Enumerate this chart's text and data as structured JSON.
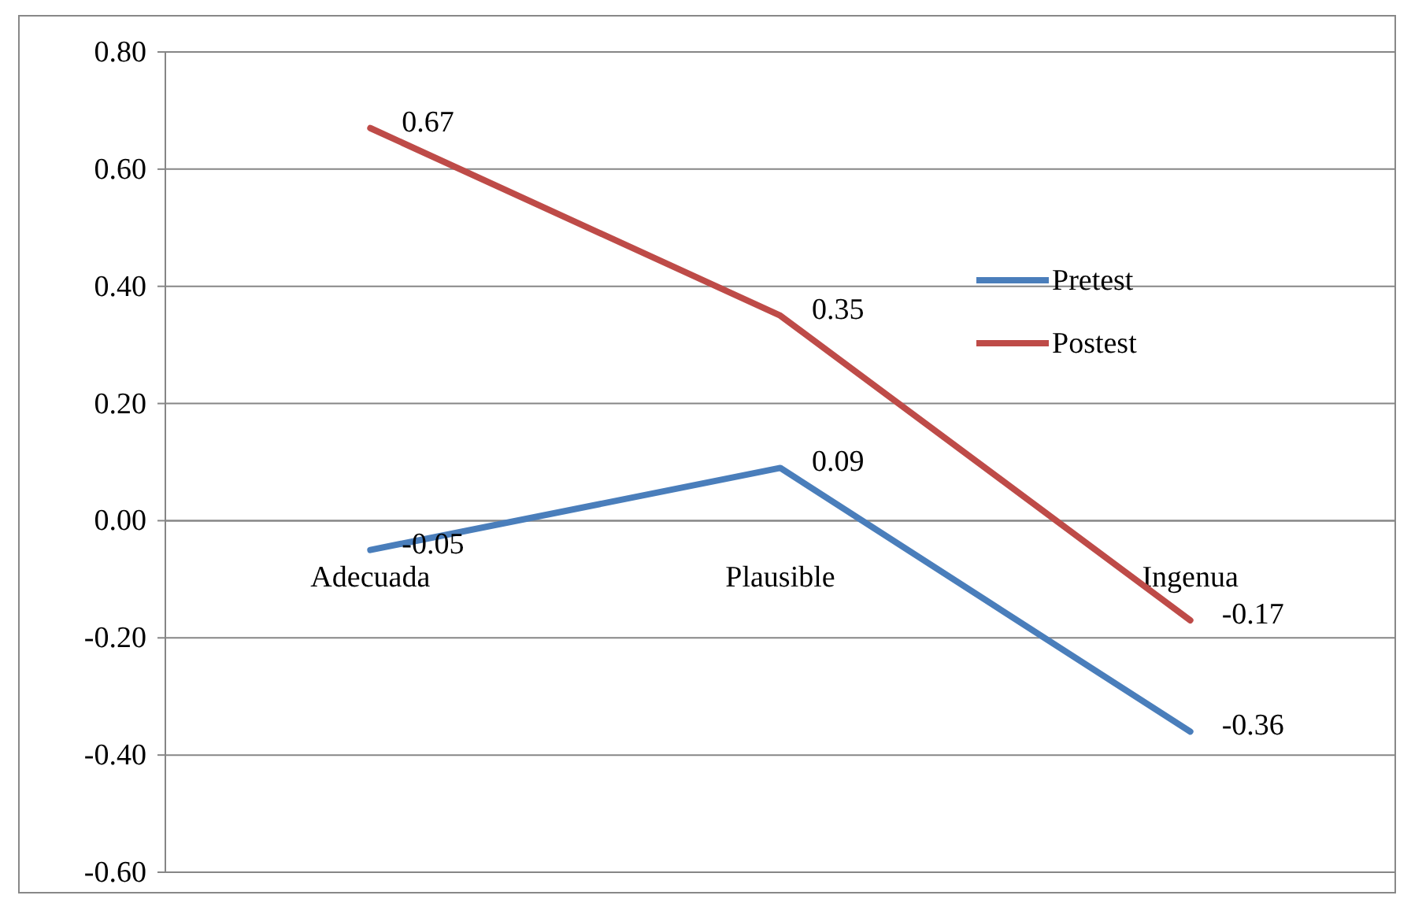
{
  "chart_data": {
    "type": "line",
    "categories": [
      "Adecuada",
      "Plausible",
      "Ingenua"
    ],
    "series": [
      {
        "name": "Pretest",
        "color": "#4a7ebb",
        "values": [
          -0.05,
          0.09,
          -0.36
        ]
      },
      {
        "name": "Postest",
        "color": "#be4b48",
        "values": [
          0.67,
          0.35,
          -0.17
        ]
      }
    ],
    "ylim": [
      -0.6,
      0.8
    ],
    "yticks": [
      {
        "value": -0.6,
        "label": "-0.60"
      },
      {
        "value": -0.4,
        "label": "-0.40"
      },
      {
        "value": -0.2,
        "label": "-0.20"
      },
      {
        "value": 0,
        "label": "0.00"
      },
      {
        "value": 0.2,
        "label": "0.20"
      },
      {
        "value": 0.4,
        "label": "0.40"
      },
      {
        "value": 0.6,
        "label": "0.60"
      },
      {
        "value": 0.8,
        "label": "0.80"
      }
    ],
    "grid": "y",
    "legend": "right",
    "data_labels": true,
    "marker": "none",
    "line_style": "solid"
  }
}
